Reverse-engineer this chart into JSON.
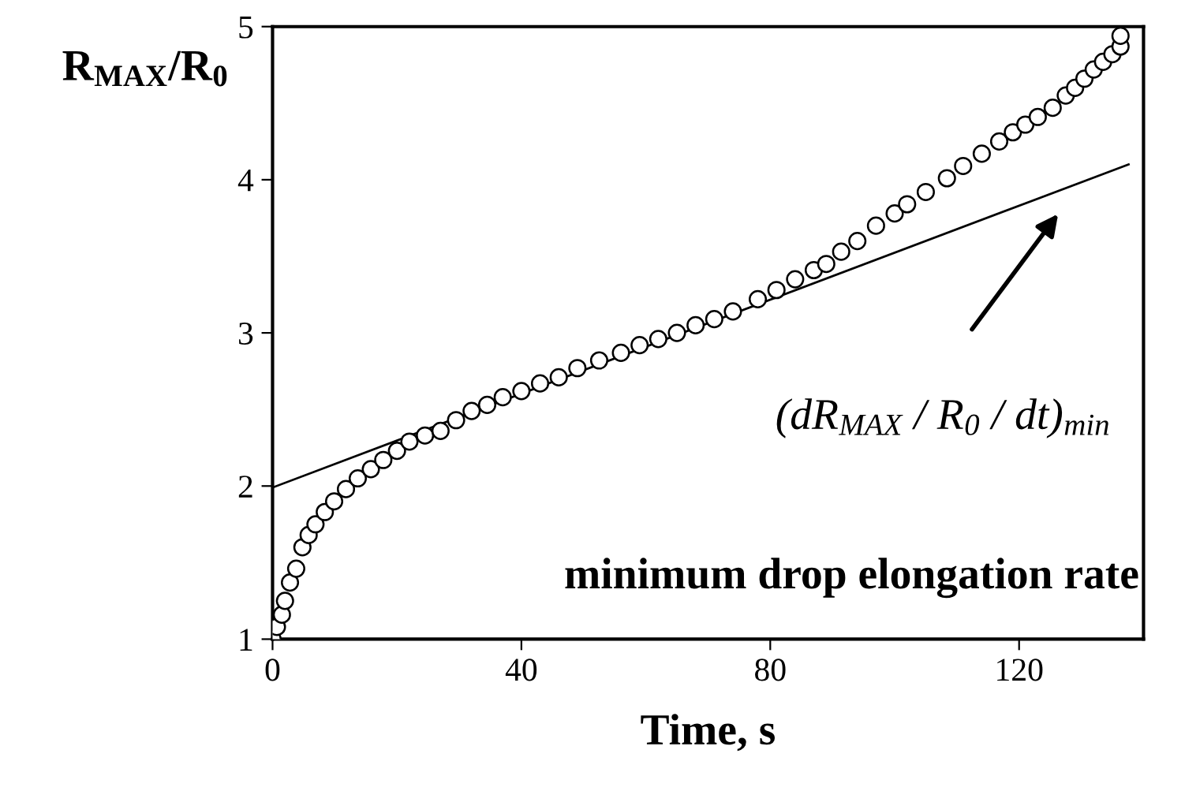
{
  "chart_data": {
    "type": "scatter",
    "xlabel": "Time, s",
    "ylabel": "R$_{MAX}$/R$_{0}$",
    "xlim": [
      0,
      140
    ],
    "xticks": [
      0,
      40,
      80,
      120
    ],
    "ylim": [
      1,
      5
    ],
    "yticks": [
      1,
      2,
      3,
      4,
      5
    ],
    "grid": false,
    "series": [
      {
        "marker": "circle",
        "color": "#000000",
        "x": [
          0,
          0.7,
          1.5,
          2,
          2.8,
          3.8,
          4.8,
          5.8,
          6.9,
          8.4,
          9.9,
          11.8,
          13.7,
          15.8,
          17.8,
          20,
          22,
          24.5,
          27,
          29.5,
          32,
          34.5,
          37,
          40,
          43,
          46,
          49,
          52.5,
          56,
          59,
          62,
          65,
          68,
          71,
          74,
          78,
          81,
          84,
          87,
          89,
          91.4,
          94,
          97,
          100,
          102,
          105,
          108.4,
          111,
          114,
          116.8,
          119,
          121,
          123,
          125.4,
          127.5,
          129,
          130.5,
          132,
          133.5,
          135,
          136.3,
          136.3
        ],
        "values": [
          1.0,
          1.08,
          1.16,
          1.25,
          1.37,
          1.46,
          1.6,
          1.68,
          1.75,
          1.83,
          1.9,
          1.98,
          2.05,
          2.11,
          2.17,
          2.23,
          2.29,
          2.33,
          2.36,
          2.43,
          2.49,
          2.53,
          2.58,
          2.62,
          2.67,
          2.71,
          2.77,
          2.82,
          2.87,
          2.92,
          2.96,
          3.0,
          3.05,
          3.09,
          3.14,
          3.22,
          3.28,
          3.35,
          3.41,
          3.45,
          3.53,
          3.6,
          3.7,
          3.78,
          3.84,
          3.92,
          4.01,
          4.09,
          4.17,
          4.25,
          4.31,
          4.36,
          4.41,
          4.47,
          4.55,
          4.6,
          4.66,
          4.72,
          4.77,
          4.82,
          4.87,
          4.94
        ]
      },
      {
        "type": "line",
        "marker": "none",
        "line_style": "solid",
        "color": "#000000",
        "x": [
          0,
          137.6
        ],
        "values": [
          1.99,
          4.1
        ]
      }
    ],
    "annotations": [
      "(dR$_{MAX}$ / R$_{0}$ / dt)$_{min}$",
      "minimum drop elongation rate"
    ]
  }
}
